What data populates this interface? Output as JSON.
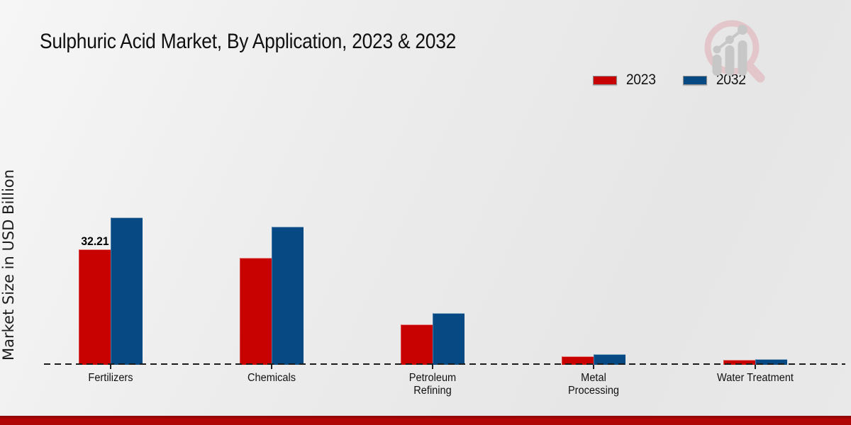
{
  "title": "Sulphuric Acid Market, By Application, 2023 & 2032",
  "y_axis_label": "Market Size in USD Billion",
  "legend": {
    "items": [
      {
        "label": "2023",
        "color": "#c80101"
      },
      {
        "label": "2032",
        "color": "#074a83"
      }
    ]
  },
  "colors": {
    "bar_2023": "#c80101",
    "bar_2032": "#074a83",
    "footer_red": "#b30505",
    "logo_pink": "#e3c6ca",
    "logo_gray": "#c7c7c7",
    "baseline": "#1b1b1b"
  },
  "chart_data": {
    "type": "bar",
    "title": "Sulphuric Acid Market, By Application, 2023 & 2032",
    "categories": [
      "Fertilizers",
      "Chemicals",
      "Petroleum Refining",
      "Metal Processing",
      "Water Treatment"
    ],
    "series": [
      {
        "name": "2023",
        "color": "#c80101",
        "values": [
          32.21,
          30.0,
          11.2,
          2.3,
          1.3
        ]
      },
      {
        "name": "2032",
        "color": "#074a83",
        "values": [
          41.1,
          38.6,
          14.4,
          3.0,
          1.6
        ]
      }
    ],
    "data_labels": [
      {
        "series": "2023",
        "category": "Fertilizers",
        "text": "32.21"
      }
    ],
    "xlabel": "",
    "ylabel": "Market Size in USD Billion",
    "ylim": [
      0,
      45
    ],
    "grid": false,
    "y_axis_ticks_visible": false,
    "legend_position": "top-right",
    "baseline_style": "dashed"
  }
}
